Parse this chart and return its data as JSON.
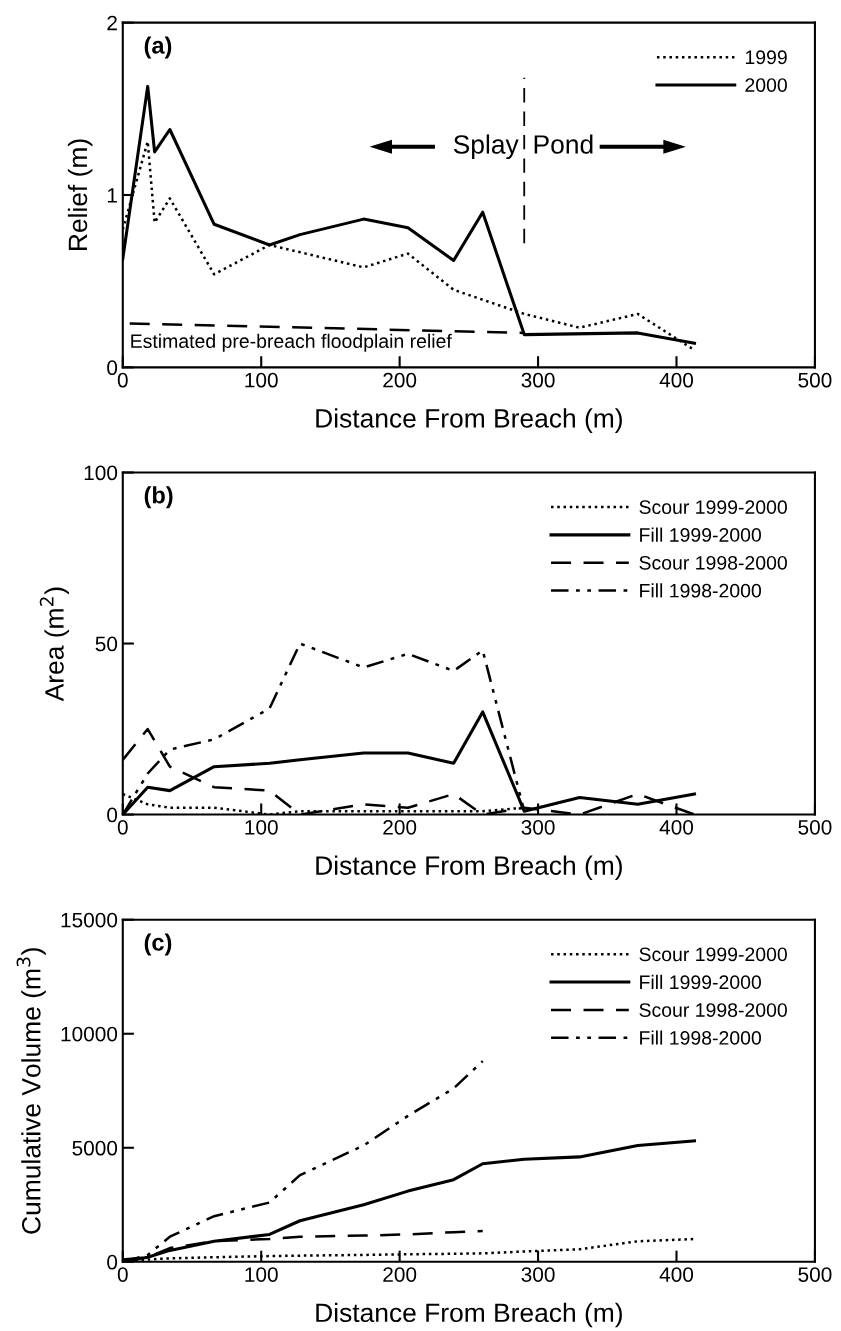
{
  "chart_data": [
    {
      "type": "line",
      "title": "(a)",
      "xlabel": "Distance From Breach (m)",
      "ylabel": "Relief (m)",
      "xlim": [
        0,
        500
      ],
      "xticks": [
        0,
        100,
        200,
        300,
        400,
        500
      ],
      "ylim": [
        0,
        2
      ],
      "yticks": [
        0,
        1,
        2
      ],
      "grid": false,
      "legend": "top right",
      "series": [
        {
          "name": "1999",
          "color": "#000000",
          "line_style": "dotted",
          "x": [
            0,
            18,
            23,
            34,
            66,
            106,
            174,
            206,
            239,
            290,
            330,
            372,
            413
          ],
          "values": [
            0.8,
            1.31,
            0.84,
            0.98,
            0.54,
            0.71,
            0.58,
            0.66,
            0.45,
            0.31,
            0.23,
            0.31,
            0.1
          ]
        },
        {
          "name": "2000",
          "color": "#000000",
          "line_style": "solid",
          "x": [
            0,
            18,
            23,
            34,
            66,
            106,
            128,
            174,
            206,
            239,
            260,
            290,
            372,
            413
          ],
          "values": [
            0.63,
            1.63,
            1.25,
            1.38,
            0.83,
            0.71,
            0.77,
            0.86,
            0.81,
            0.62,
            0.9,
            0.19,
            0.2,
            0.14
          ]
        },
        {
          "name": "Estimated pre-breach floodplain relief",
          "color": "#000000",
          "line_style": "dashed",
          "x": [
            5,
            290
          ],
          "values": [
            0.255,
            0.2
          ]
        }
      ],
      "ref_lines": [
        {
          "axis": "x",
          "value": 290,
          "line_style": "dashed",
          "color": "#000000"
        }
      ],
      "annotations": [
        "Splay",
        "Pond"
      ]
    },
    {
      "type": "line",
      "title": "(b)",
      "xlabel": "Distance From Breach (m)",
      "ylabel": "Area (m$^{2}$)",
      "xlim": [
        0,
        500
      ],
      "xticks": [
        0,
        100,
        200,
        300,
        400,
        500
      ],
      "ylim": [
        0,
        100
      ],
      "yticks": [
        0,
        50,
        100
      ],
      "grid": false,
      "legend": "top right",
      "series": [
        {
          "name": "Scour 1999-2000",
          "color": "#000000",
          "line_style": "dotted",
          "x": [
            0,
            18,
            34,
            66,
            106,
            128,
            174,
            206,
            239,
            260,
            290
          ],
          "values": [
            6,
            3,
            2,
            2,
            0,
            1,
            1,
            1,
            1,
            1,
            2
          ]
        },
        {
          "name": "Fill 1999-2000",
          "color": "#000000",
          "line_style": "solid",
          "x": [
            0,
            18,
            34,
            66,
            106,
            128,
            174,
            206,
            239,
            260,
            290,
            330,
            372,
            413
          ],
          "values": [
            0,
            8,
            7,
            14,
            15,
            16,
            18,
            18,
            15,
            30,
            1,
            5,
            3,
            6
          ]
        },
        {
          "name": "Scour 1998-2000",
          "color": "#000000",
          "line_style": "dashed",
          "x": [
            0,
            18,
            34,
            66,
            106,
            128,
            174,
            206,
            239,
            260,
            290,
            330,
            372,
            413
          ],
          "values": [
            16,
            25,
            14,
            8,
            7,
            0,
            3,
            2,
            6,
            0,
            2,
            0,
            6,
            0
          ]
        },
        {
          "name": "Fill 1998-2000",
          "color": "#000000",
          "line_style": "dashdotdot",
          "x": [
            0,
            18,
            34,
            66,
            106,
            128,
            174,
            206,
            239,
            260,
            290
          ],
          "values": [
            0,
            12,
            19,
            22,
            31,
            50,
            43,
            47,
            42,
            48,
            1
          ]
        }
      ]
    },
    {
      "type": "line",
      "title": "(c)",
      "xlabel": "Distance From Breach (m)",
      "ylabel": "Cumulative Volume (m$^{3}$)",
      "xlim": [
        0,
        500
      ],
      "xticks": [
        0,
        100,
        200,
        300,
        400,
        500
      ],
      "ylim": [
        0,
        15000
      ],
      "yticks": [
        0,
        5000,
        10000,
        15000
      ],
      "grid": false,
      "legend": "top right",
      "series": [
        {
          "name": "Scour 1999-2000",
          "color": "#000000",
          "line_style": "dotted",
          "x": [
            0,
            18,
            34,
            66,
            106,
            128,
            174,
            206,
            239,
            260,
            290,
            330,
            372,
            413
          ],
          "values": [
            0,
            100,
            150,
            200,
            250,
            270,
            300,
            330,
            350,
            370,
            450,
            550,
            900,
            1000
          ]
        },
        {
          "name": "Fill 1999-2000",
          "color": "#000000",
          "line_style": "solid",
          "x": [
            0,
            18,
            34,
            66,
            106,
            128,
            174,
            206,
            239,
            260,
            290,
            330,
            372,
            413
          ],
          "values": [
            0,
            200,
            500,
            900,
            1200,
            1800,
            2500,
            3100,
            3600,
            4300,
            4500,
            4600,
            5100,
            5300
          ]
        },
        {
          "name": "Scour 1998-2000",
          "color": "#000000",
          "line_style": "dashed",
          "x": [
            0,
            18,
            34,
            66,
            106,
            128,
            174,
            206,
            239,
            260
          ],
          "values": [
            100,
            200,
            600,
            900,
            1000,
            1100,
            1150,
            1200,
            1300,
            1350
          ]
        },
        {
          "name": "Fill 1998-2000",
          "color": "#000000",
          "line_style": "dashdotdot",
          "x": [
            0,
            18,
            34,
            66,
            106,
            128,
            174,
            206,
            239,
            260
          ],
          "values": [
            0,
            300,
            1100,
            2000,
            2600,
            3800,
            5100,
            6400,
            7600,
            8800
          ]
        }
      ]
    }
  ]
}
